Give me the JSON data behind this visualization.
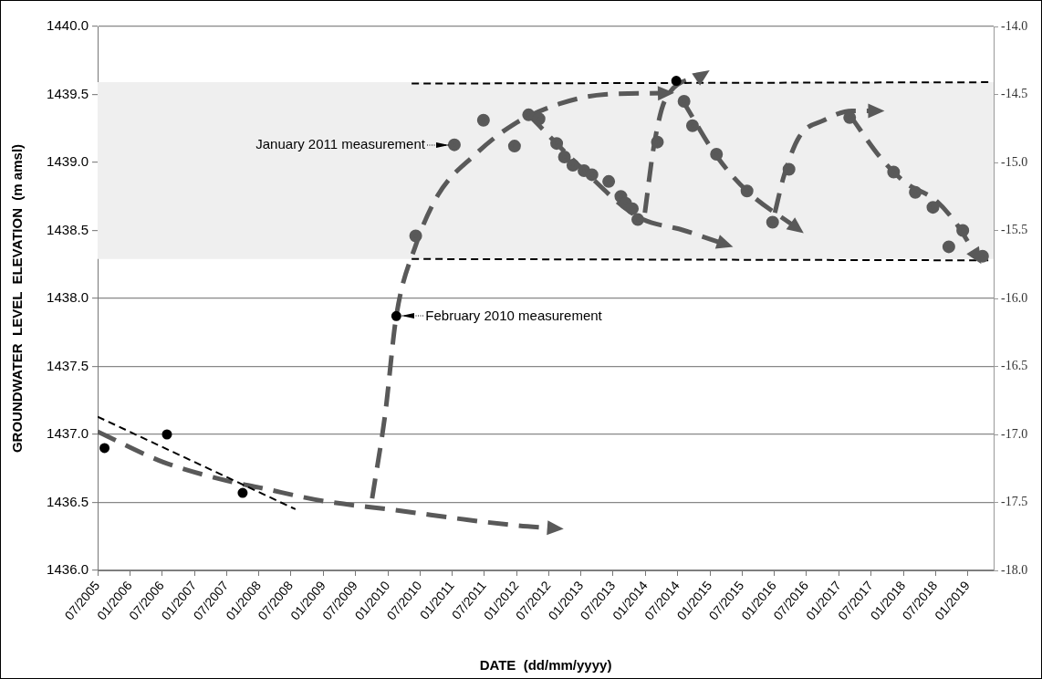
{
  "chart_data": {
    "type": "scatter",
    "xlabel": "DATE  (dd/mm/yyyy)",
    "ylabel": "GROUNDWATER  LEVEL  ELEVATION  (m amsl)",
    "xlim": [
      "2005-07-01",
      "2019-05-28"
    ],
    "xticks": [
      {
        "value": "2005-07-01",
        "label": "07/2005"
      },
      {
        "value": "2006-01-01",
        "label": "01/2006"
      },
      {
        "value": "2006-07-01",
        "label": "07/2006"
      },
      {
        "value": "2007-01-01",
        "label": "01/2007"
      },
      {
        "value": "2007-07-01",
        "label": "07/2007"
      },
      {
        "value": "2008-01-01",
        "label": "01/2008"
      },
      {
        "value": "2008-07-01",
        "label": "07/2008"
      },
      {
        "value": "2009-01-01",
        "label": "01/2009"
      },
      {
        "value": "2009-07-01",
        "label": "07/2009"
      },
      {
        "value": "2010-01-01",
        "label": "01/2010"
      },
      {
        "value": "2010-07-01",
        "label": "07/2010"
      },
      {
        "value": "2011-01-01",
        "label": "01/2011"
      },
      {
        "value": "2011-07-01",
        "label": "07/2011"
      },
      {
        "value": "2012-01-01",
        "label": "01/2012"
      },
      {
        "value": "2012-07-01",
        "label": "07/2012"
      },
      {
        "value": "2013-01-01",
        "label": "01/2013"
      },
      {
        "value": "2013-07-01",
        "label": "07/2013"
      },
      {
        "value": "2014-01-01",
        "label": "01/2014"
      },
      {
        "value": "2014-07-01",
        "label": "07/2014"
      },
      {
        "value": "2015-01-01",
        "label": "01/2015"
      },
      {
        "value": "2015-07-01",
        "label": "07/2015"
      },
      {
        "value": "2016-01-01",
        "label": "01/2016"
      },
      {
        "value": "2016-07-01",
        "label": "07/2016"
      },
      {
        "value": "2017-01-01",
        "label": "01/2017"
      },
      {
        "value": "2017-07-01",
        "label": "07/2017"
      },
      {
        "value": "2018-01-01",
        "label": "01/2018"
      },
      {
        "value": "2018-07-01",
        "label": "07/2018"
      },
      {
        "value": "2019-01-01",
        "label": "01/2019"
      }
    ],
    "ylim": [
      1436,
      1440
    ],
    "yticks": [
      {
        "value": 1436,
        "label": "1436.0"
      },
      {
        "value": 1436.5,
        "label": "1436.5"
      },
      {
        "value": 1437,
        "label": "1437.0"
      },
      {
        "value": 1437.5,
        "label": "1437.5"
      },
      {
        "value": 1438,
        "label": "1438.0"
      },
      {
        "value": 1438.5,
        "label": "1438.5"
      },
      {
        "value": 1439,
        "label": "1439.0"
      },
      {
        "value": 1439.5,
        "label": "1439.5"
      },
      {
        "value": 1440,
        "label": "1440.0"
      }
    ],
    "y2lim": [
      -18,
      -14
    ],
    "y2ticks": [
      {
        "value": -18,
        "label": "-18.0"
      },
      {
        "value": -17.5,
        "label": "-17.5"
      },
      {
        "value": -17,
        "label": "-17.0"
      },
      {
        "value": -16.5,
        "label": "-16.5"
      },
      {
        "value": -16,
        "label": "-16.0"
      },
      {
        "value": -15.5,
        "label": "-15.5"
      },
      {
        "value": -15,
        "label": "-15.0"
      },
      {
        "value": -14.5,
        "label": "-14.5"
      },
      {
        "value": -14,
        "label": "-14.0"
      }
    ],
    "grid": "y",
    "legend": false,
    "marker": "circle",
    "bands": [
      {
        "axis": "y",
        "from": 1438.29,
        "to": 1439.59,
        "color": "#efefef"
      }
    ],
    "series": [
      {
        "type": "line",
        "color": "#000000",
        "marker": "none",
        "line_style": "dashed",
        "x": [
          "2010-05-16",
          "2019-05-15"
        ],
        "values": [
          1439.58,
          1439.59
        ]
      },
      {
        "type": "line",
        "color": "#000000",
        "marker": "none",
        "line_style": "dashed",
        "x": [
          "2010-05-16",
          "2019-05-15"
        ],
        "values": [
          1438.29,
          1438.28
        ]
      },
      {
        "type": "line",
        "color": "#000000",
        "marker": "none",
        "line_style": "dashed",
        "x": [
          "2005-07-01",
          "2008-07-26"
        ],
        "values": [
          1437.13,
          1436.45
        ]
      },
      {
        "type": "line",
        "color": "#595959",
        "marker": "none",
        "line_style": "dashed",
        "x": [
          "2005-07-01",
          "2006-07-01",
          "2007-07-01",
          "2008-01-01",
          "2009-01-01",
          "2010-01-01",
          "2012-01-01",
          "2012-08-03"
        ],
        "values": [
          1437.02,
          1436.8,
          1436.66,
          1436.61,
          1436.51,
          1436.45,
          1436.33,
          1436.31
        ]
      },
      {
        "type": "line",
        "color": "#595959",
        "marker": "none",
        "line_style": "dashed",
        "x": [
          "2009-10-04",
          "2009-12-17",
          "2010-02-18",
          "2010-06-08",
          "2010-10-12",
          "2011-05-04",
          "2011-12-15",
          "2012-08-28",
          "2013-05-15",
          "2014-04-22"
        ],
        "values": [
          1436.53,
          1437.15,
          1437.87,
          1438.39,
          1438.76,
          1439.05,
          1439.28,
          1439.43,
          1439.5,
          1439.51
        ]
      },
      {
        "type": "line",
        "color": "#595959",
        "marker": "none",
        "line_style": "dashed",
        "x": [
          "2012-03-09",
          "2013-01-17",
          "2013-11-18",
          "2014-08-07",
          "2015-03-24"
        ],
        "values": [
          1439.35,
          1438.94,
          1438.6,
          1438.5,
          1438.4
        ]
      },
      {
        "type": "line",
        "color": "#595959",
        "marker": "none",
        "line_style": "dashed",
        "x": [
          "2013-12-28",
          "2014-02-17",
          "2014-04-22",
          "2014-11-17"
        ],
        "values": [
          1438.63,
          1439.12,
          1439.46,
          1439.64
        ]
      },
      {
        "type": "line",
        "color": "#595959",
        "marker": "none",
        "line_style": "dashed",
        "x": [
          "2014-07-28",
          "2015-02-06",
          "2015-07-30",
          "2016-05-05"
        ],
        "values": [
          1439.46,
          1439.05,
          1438.79,
          1438.52
        ]
      },
      {
        "type": "line",
        "color": "#595959",
        "marker": "none",
        "line_style": "dashed",
        "x": [
          "2016-01-04",
          "2016-02-24",
          "2016-05-22",
          "2016-10-08",
          "2017-03-15",
          "2017-07-27"
        ],
        "values": [
          1438.63,
          1438.9,
          1439.19,
          1439.31,
          1439.38,
          1439.38
        ]
      },
      {
        "type": "line",
        "color": "#595959",
        "marker": "none",
        "line_style": "dashed",
        "x": [
          "2017-03-03",
          "2017-08-28",
          "2018-01-15",
          "2018-07-05",
          "2018-11-03",
          "2019-02-20"
        ],
        "values": [
          1439.35,
          1439.03,
          1438.85,
          1438.72,
          1438.54,
          1438.31
        ]
      },
      {
        "type": "scatter",
        "color": "#000000",
        "x": [
          "2005-08-09",
          "2006-07-29",
          "2007-10-01",
          "2010-02-18",
          "2014-06-24"
        ],
        "values": [
          1436.9,
          1437.0,
          1436.57,
          1437.87,
          1439.6
        ]
      },
      {
        "type": "scatter",
        "color": "#595959",
        "x": [
          "2010-06-08",
          "2011-01-13",
          "2011-06-27",
          "2011-12-20",
          "2012-03-09",
          "2012-05-07",
          "2012-08-15",
          "2012-09-28",
          "2012-11-15",
          "2013-01-17",
          "2013-03-03",
          "2013-06-06",
          "2013-08-14",
          "2013-09-10",
          "2013-10-18",
          "2013-11-18",
          "2014-03-09",
          "2014-08-07",
          "2014-09-24",
          "2015-02-07",
          "2015-07-30",
          "2015-12-22",
          "2016-03-24",
          "2017-03-03",
          "2017-11-07",
          "2018-03-10",
          "2018-06-18",
          "2018-09-16",
          "2018-12-04",
          "2019-03-26"
        ],
        "values": [
          1438.46,
          1439.13,
          1439.31,
          1439.12,
          1439.35,
          1439.32,
          1439.14,
          1439.04,
          1438.98,
          1438.94,
          1438.91,
          1438.86,
          1438.75,
          1438.7,
          1438.66,
          1438.58,
          1439.15,
          1439.45,
          1439.27,
          1439.06,
          1438.79,
          1438.56,
          1438.95,
          1439.33,
          1438.93,
          1438.78,
          1438.67,
          1438.38,
          1438.5,
          1438.31
        ]
      }
    ],
    "annotations": [
      {
        "text": "January 2011 measurement",
        "x": "2011-01-13",
        "y": 1439.13
      },
      {
        "text": "February 2010 measurement",
        "x": "2010-02-18",
        "y": 1437.87
      }
    ]
  }
}
